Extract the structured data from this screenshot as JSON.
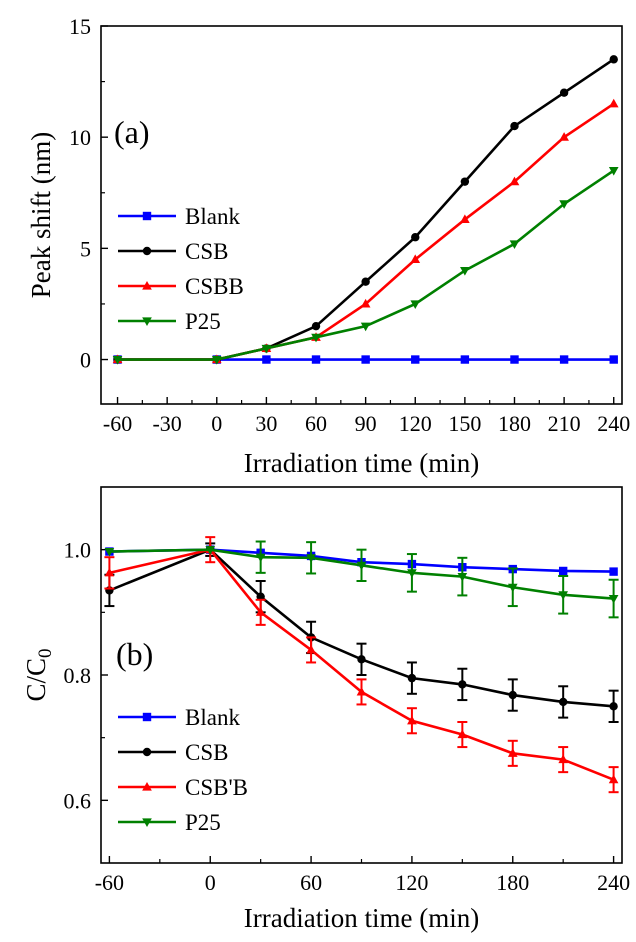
{
  "chart_data": [
    {
      "type": "line",
      "panel_label": "(a)",
      "xlabel": "Irradiation time (min)",
      "ylabel": "Peak shift (nm)",
      "xlim": [
        -70,
        245
      ],
      "ylim": [
        -2,
        15
      ],
      "xticks": [
        -60,
        -30,
        0,
        30,
        60,
        90,
        120,
        150,
        180,
        210,
        240
      ],
      "yticks": [
        0,
        5,
        10,
        15
      ],
      "legend_position": "middle-left",
      "series": [
        {
          "name": "Blank",
          "color": "#0000ff",
          "marker": "square",
          "x": [
            -60,
            0,
            30,
            60,
            90,
            120,
            150,
            180,
            210,
            240
          ],
          "y": [
            0,
            0,
            0,
            0,
            0,
            0,
            0,
            0,
            0,
            0
          ]
        },
        {
          "name": "CSB",
          "color": "#000000",
          "marker": "circle",
          "x": [
            -60,
            0,
            30,
            60,
            90,
            120,
            150,
            180,
            210,
            240
          ],
          "y": [
            0,
            0,
            0.5,
            1.5,
            3.5,
            5.5,
            8.0,
            10.5,
            12.0,
            13.5
          ]
        },
        {
          "name": "CSBB",
          "color": "#ff0000",
          "marker": "triangle-up",
          "x": [
            -60,
            0,
            30,
            60,
            90,
            120,
            150,
            180,
            210,
            240
          ],
          "y": [
            0,
            0,
            0.5,
            1.0,
            2.5,
            4.5,
            6.3,
            8.0,
            10.0,
            11.5
          ]
        },
        {
          "name": "P25",
          "color": "#008000",
          "marker": "triangle-down",
          "x": [
            -60,
            0,
            30,
            60,
            90,
            120,
            150,
            180,
            210,
            240
          ],
          "y": [
            0,
            0,
            0.5,
            1.0,
            1.5,
            2.5,
            4.0,
            5.2,
            7.0,
            8.5
          ]
        }
      ]
    },
    {
      "type": "line",
      "panel_label": "(b)",
      "xlabel": "Irradiation time (min)",
      "ylabel": "C/C0",
      "ylabel_main": "C/C",
      "ylabel_sub": "0",
      "xlim": [
        -65,
        245
      ],
      "ylim": [
        0.5,
        1.1
      ],
      "xticks": [
        -60,
        0,
        60,
        120,
        180,
        240
      ],
      "yticks": [
        0.6,
        0.8,
        1.0
      ],
      "ytick_labels": [
        "0.6",
        "0.8",
        "1.0"
      ],
      "legend_position": "bottom-left",
      "series": [
        {
          "name": "Blank",
          "color": "#0000ff",
          "marker": "square",
          "x": [
            -60,
            0,
            30,
            60,
            90,
            120,
            150,
            180,
            210,
            240
          ],
          "y": [
            0.997,
            1.0,
            0.995,
            0.99,
            0.98,
            0.977,
            0.972,
            0.969,
            0.966,
            0.965
          ],
          "err": [
            0,
            0,
            0,
            0,
            0,
            0,
            0,
            0,
            0,
            0
          ]
        },
        {
          "name": "CSB",
          "color": "#000000",
          "marker": "circle",
          "x": [
            -60,
            0,
            30,
            60,
            90,
            120,
            150,
            180,
            210,
            240
          ],
          "y": [
            0.935,
            1.0,
            0.925,
            0.86,
            0.825,
            0.795,
            0.785,
            0.768,
            0.757,
            0.75
          ],
          "err": [
            0.025,
            0.01,
            0.025,
            0.025,
            0.025,
            0.025,
            0.025,
            0.025,
            0.025,
            0.025
          ]
        },
        {
          "name": "CSB'B",
          "color": "#ff0000",
          "marker": "triangle-up",
          "x": [
            -60,
            0,
            30,
            60,
            90,
            120,
            150,
            180,
            210,
            240
          ],
          "y": [
            0.963,
            1.0,
            0.9,
            0.84,
            0.773,
            0.727,
            0.705,
            0.675,
            0.665,
            0.633
          ],
          "err": [
            0.025,
            0.02,
            0.02,
            0.02,
            0.02,
            0.02,
            0.02,
            0.02,
            0.02,
            0.02
          ]
        },
        {
          "name": "P25",
          "color": "#008000",
          "marker": "triangle-down",
          "x": [
            -60,
            0,
            30,
            60,
            90,
            120,
            150,
            180,
            210,
            240
          ],
          "y": [
            0.997,
            1.0,
            0.988,
            0.987,
            0.975,
            0.963,
            0.957,
            0.94,
            0.928,
            0.922
          ],
          "err": [
            0,
            0,
            0.025,
            0.025,
            0.025,
            0.03,
            0.03,
            0.03,
            0.03,
            0.03
          ]
        }
      ]
    }
  ]
}
